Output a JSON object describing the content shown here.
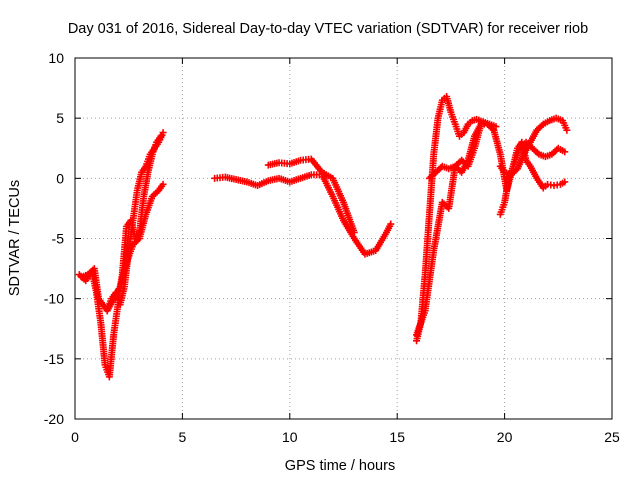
{
  "chart_data": {
    "type": "scatter",
    "title": "Day 031 of 2016, Sidereal Day-to-day VTEC variation (SDTVAR) for receiver riob",
    "xlabel": "GPS time / hours",
    "ylabel": "SDTVAR / TECUs",
    "xlim": [
      0,
      25
    ],
    "ylim": [
      -20,
      10
    ],
    "x_ticks": [
      "0",
      "5",
      "10",
      "15",
      "20",
      "25"
    ],
    "y_ticks": [
      "-20",
      "-15",
      "-10",
      "-5",
      "0",
      "5",
      "10"
    ],
    "grid": true,
    "marker": "+",
    "color": "#ff0000",
    "series": [
      {
        "x": [
          0.2,
          0.5,
          0.8,
          1.0,
          1.2,
          1.4,
          1.6,
          1.8,
          2.0,
          2.2,
          2.4,
          2.6,
          2.8,
          3.0,
          3.2,
          3.4,
          3.6,
          3.8,
          4.0
        ],
        "y": [
          -8.0,
          -8.5,
          -7.8,
          -9.5,
          -12.0,
          -15.5,
          -16.5,
          -13.0,
          -10.5,
          -8.0,
          -4.0,
          -3.5,
          -5.0,
          -4.5,
          -1.5,
          0.5,
          2.0,
          3.0,
          3.5
        ]
      },
      {
        "x": [
          0.3,
          0.6,
          0.9,
          1.1,
          1.3,
          1.5,
          1.7,
          1.9,
          2.1,
          2.3,
          2.5,
          2.7,
          2.9,
          3.1,
          3.3,
          3.5,
          3.7,
          3.9,
          4.1
        ],
        "y": [
          -8.2,
          -8.0,
          -7.5,
          -10.0,
          -10.5,
          -11.0,
          -10.0,
          -9.5,
          -10.5,
          -9.0,
          -6.0,
          -3.5,
          -1.0,
          0.5,
          1.0,
          2.0,
          2.5,
          3.0,
          3.8
        ]
      },
      {
        "x": [
          1.5,
          1.8,
          2.1,
          2.4,
          2.7,
          3.0,
          3.3,
          3.6,
          3.9,
          4.1
        ],
        "y": [
          -11.0,
          -10.0,
          -9.0,
          -7.0,
          -5.5,
          -5.0,
          -3.0,
          -1.5,
          -1.0,
          -0.5
        ]
      },
      {
        "x": [
          6.5,
          7.0,
          7.5,
          8.0,
          8.5,
          9.0,
          9.5,
          10.0,
          10.5,
          11.0,
          11.5,
          12.0,
          12.5,
          13.0,
          13.5,
          14.0,
          14.5,
          14.7
        ],
        "y": [
          0.0,
          0.1,
          -0.1,
          -0.3,
          -0.6,
          -0.2,
          0.0,
          -0.3,
          0.0,
          0.3,
          0.3,
          -1.5,
          -3.5,
          -5.0,
          -6.3,
          -6.0,
          -4.5,
          -3.8
        ]
      },
      {
        "x": [
          9.0,
          9.5,
          10.0,
          10.5,
          11.0,
          11.5,
          12.0,
          12.5,
          13.0
        ],
        "y": [
          1.1,
          1.3,
          1.2,
          1.5,
          1.6,
          0.5,
          0.0,
          -2.0,
          -4.5
        ]
      },
      {
        "x": [
          15.9,
          16.1,
          16.3,
          16.5,
          16.7,
          16.9,
          17.1,
          17.3,
          17.5,
          17.7,
          17.9,
          18.1,
          18.3,
          18.5,
          18.7,
          19.0,
          19.3,
          19.6
        ],
        "y": [
          -13.5,
          -12.0,
          -8.0,
          -3.0,
          2.0,
          5.0,
          6.5,
          6.8,
          5.5,
          4.5,
          3.5,
          3.8,
          4.5,
          4.8,
          4.9,
          4.7,
          4.5,
          4.3
        ]
      },
      {
        "x": [
          16.5,
          16.8,
          17.1,
          17.4,
          17.7,
          18.0,
          18.3,
          18.6,
          18.9,
          19.2,
          19.5,
          19.8,
          20.1,
          20.4,
          20.7,
          21.0,
          21.3,
          21.6,
          21.9,
          22.2,
          22.5,
          22.8
        ],
        "y": [
          0.0,
          0.5,
          1.0,
          0.8,
          1.0,
          0.5,
          1.5,
          3.5,
          4.5,
          4.5,
          4.0,
          2.0,
          -1.0,
          1.0,
          2.5,
          3.0,
          2.5,
          2.0,
          1.8,
          2.0,
          2.5,
          2.2
        ]
      },
      {
        "x": [
          15.9,
          16.3,
          16.7,
          17.1,
          17.4,
          17.7,
          18.0,
          18.3,
          18.6,
          18.9
        ],
        "y": [
          -13.0,
          -11.0,
          -6.0,
          -2.0,
          -2.5,
          1.0,
          1.5,
          1.0,
          2.5,
          4.5
        ]
      },
      {
        "x": [
          19.8,
          20.0,
          20.2,
          20.4,
          20.6,
          20.8,
          21.0,
          21.2,
          21.5,
          21.8,
          22.0,
          22.3,
          22.6,
          22.8
        ],
        "y": [
          -3.0,
          -2.0,
          0.0,
          1.0,
          2.5,
          3.0,
          1.5,
          1.0,
          0.0,
          -0.8,
          -0.5,
          -0.6,
          -0.5,
          -0.3
        ]
      },
      {
        "x": [
          19.8,
          20.0,
          20.3,
          20.6,
          20.9,
          21.2,
          21.5,
          21.8,
          22.1,
          22.4,
          22.7,
          22.9
        ],
        "y": [
          1.0,
          0.5,
          0.3,
          0.8,
          2.0,
          3.0,
          4.0,
          4.5,
          4.8,
          5.0,
          4.8,
          4.0
        ]
      }
    ]
  }
}
